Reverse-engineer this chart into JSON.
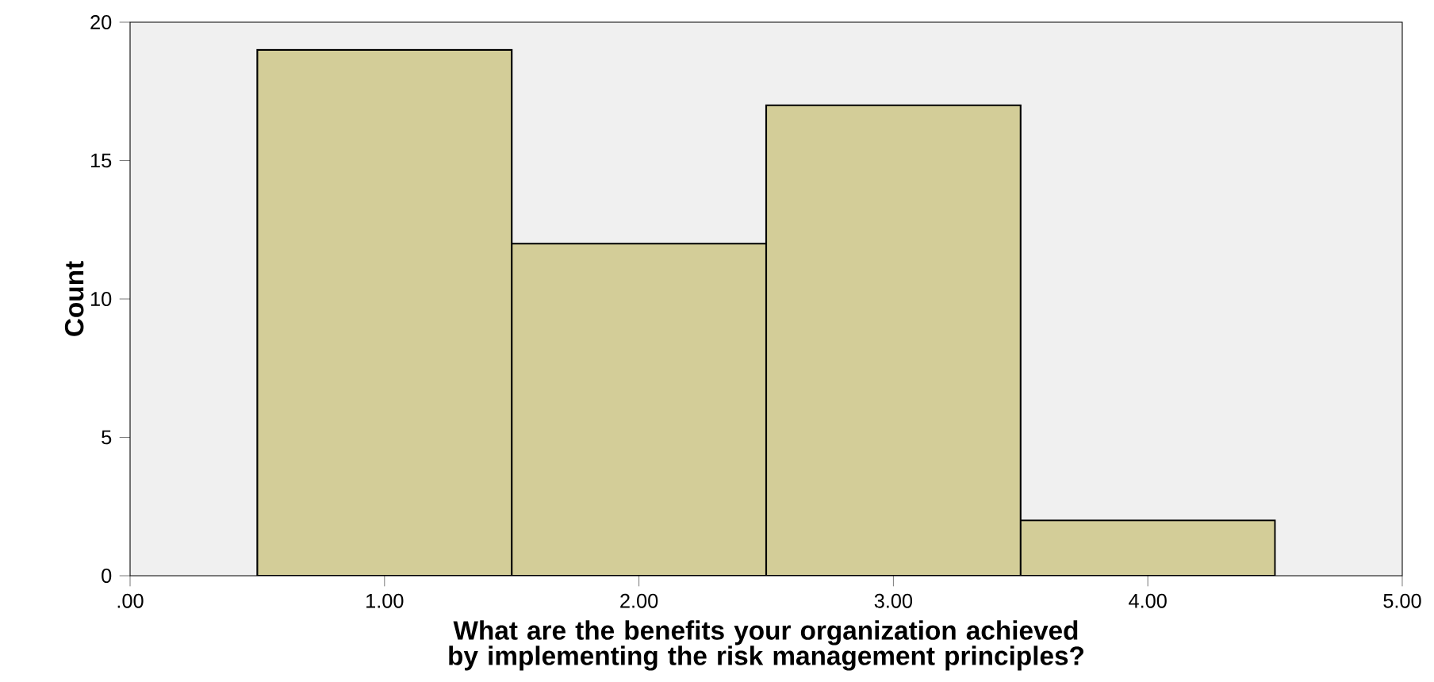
{
  "chart_data": {
    "type": "histogram",
    "xlabel": "What are the benefits your organization achieved by implementing the risk management principles?",
    "ylabel": "Count",
    "bins": [
      0.5,
      1.5,
      2.5,
      3.5,
      4.5
    ],
    "values": [
      19,
      12,
      17,
      2
    ],
    "color": "#d3cd98",
    "xlim": [
      0,
      5
    ],
    "xticks": [
      {
        "value": 0,
        "label": ".00"
      },
      {
        "value": 1,
        "label": "1.00"
      },
      {
        "value": 2,
        "label": "2.00"
      },
      {
        "value": 3,
        "label": "3.00"
      },
      {
        "value": 4,
        "label": "4.00"
      },
      {
        "value": 5,
        "label": "5.00"
      }
    ],
    "ylim": [
      0,
      20
    ],
    "yticks": [
      0,
      5,
      10,
      15,
      20
    ],
    "grid": false
  }
}
